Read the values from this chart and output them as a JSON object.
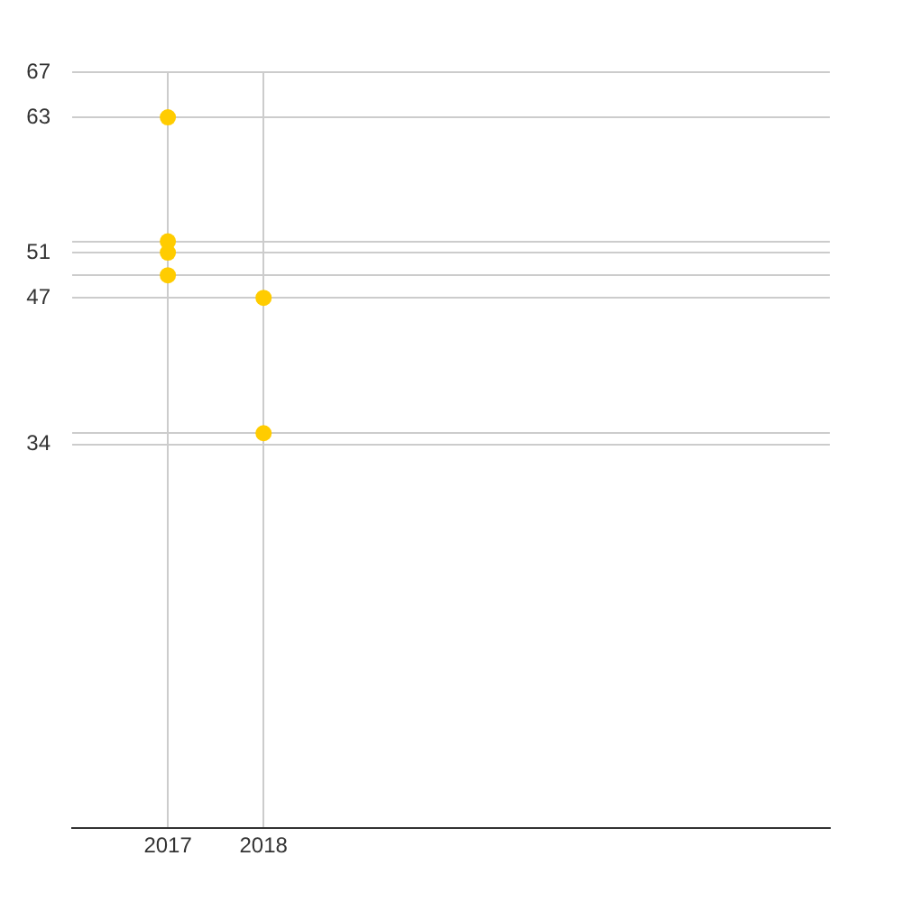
{
  "chart_data": {
    "type": "scatter",
    "series": [
      {
        "color": "#ffcc00",
        "x": [
          "2017",
          "2017",
          "2017",
          "2017",
          "2018",
          "2018"
        ],
        "values": [
          63,
          52,
          51,
          49,
          47,
          35
        ]
      }
    ],
    "xlim": [
      "2016",
      "2023-12"
    ],
    "xticks": [
      "2017",
      "2018"
    ],
    "ylim": [
      0,
      67
    ],
    "yticks": [
      67,
      63,
      {
        "value": 52,
        "label": null
      },
      51,
      {
        "value": 49,
        "label": null
      },
      47,
      {
        "value": 35,
        "label": null
      },
      34
    ],
    "grid": true,
    "marker": "circle"
  }
}
